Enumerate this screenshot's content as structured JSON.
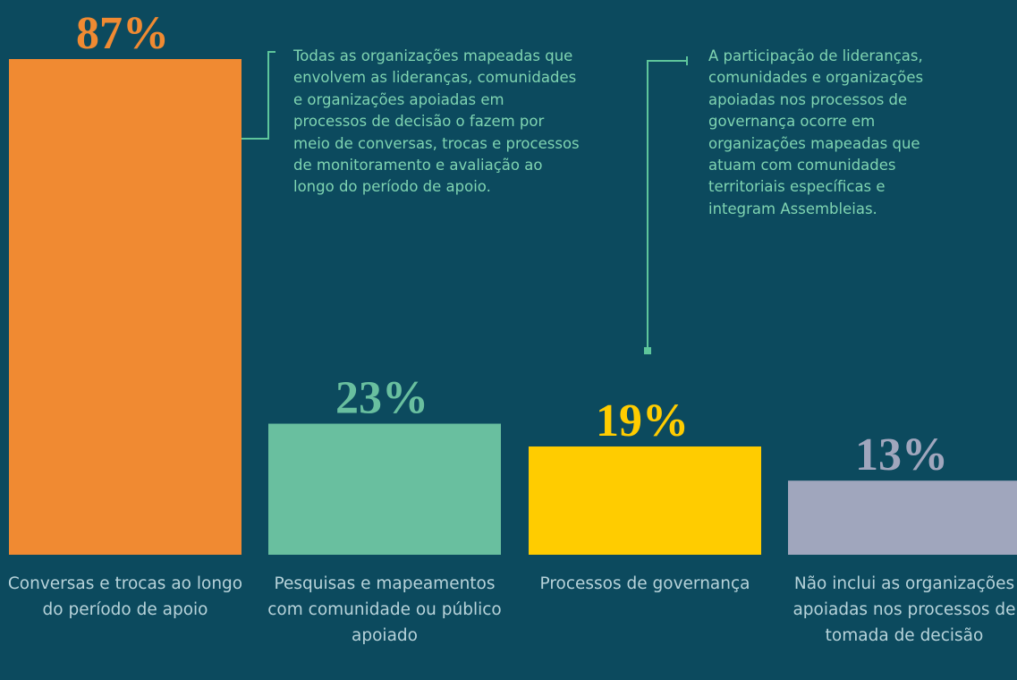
{
  "chart_data": {
    "type": "bar",
    "categories": [
      "Conversas e trocas ao longo do período de apoio",
      "Pesquisas e mapeamentos com comunidade ou público apoiado",
      "Processos de governança",
      "Não inclui as organizações apoiadas nos processos de tomada de decisão"
    ],
    "values": [
      87,
      23,
      19,
      13
    ],
    "value_labels": [
      "87%",
      "23%",
      "19%",
      "13%"
    ],
    "colors": [
      "#f08a32",
      "#69bf9f",
      "#ffcc00",
      "#a0a6bd"
    ],
    "annotations": [
      "Todas as organizações mapeadas que envolvem as lideranças, comunidades e organizações apoiadas em processos de decisão o fazem por meio de conversas, trocas e processos de monitoramento e avaliação ao longo do período de apoio.",
      "A participação de lideranças, comunidades e organizações apoiadas nos processos de governança ocorre em organizações mapeadas que atuam com comunidades territoriais específicas e integram Assembleias."
    ]
  }
}
